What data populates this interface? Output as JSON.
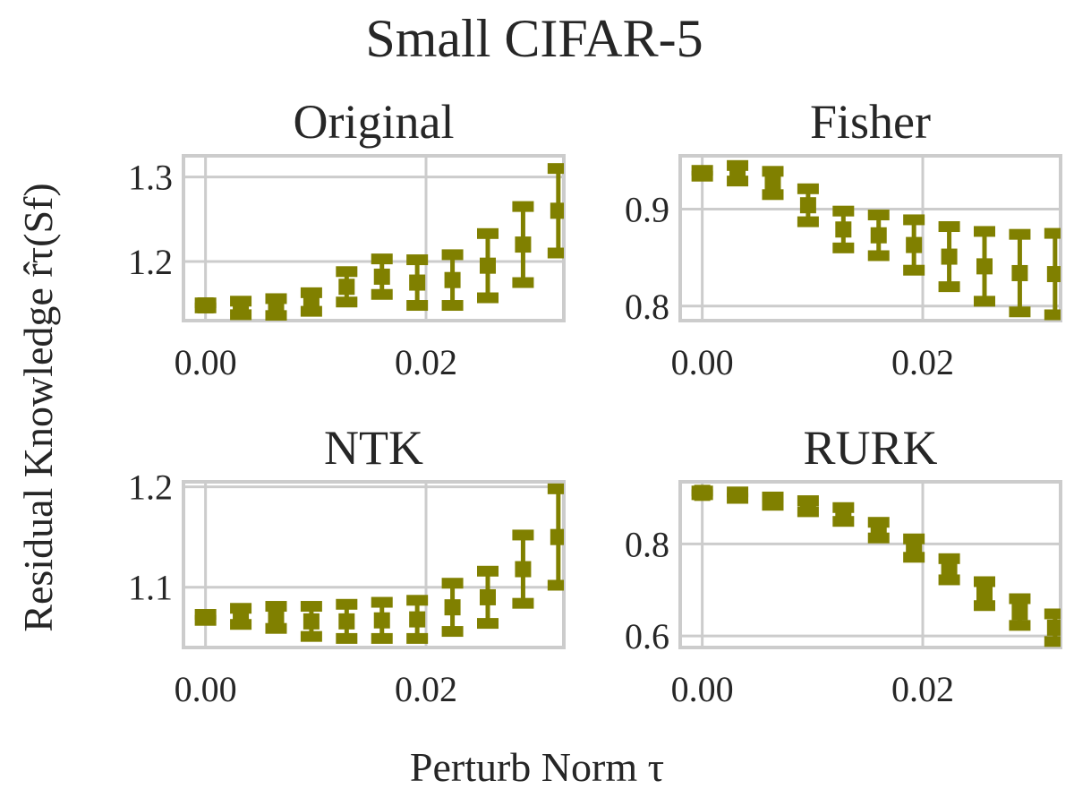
{
  "chart_data": {
    "type": "scatter",
    "title": "Small CIFAR-5",
    "xlabel": "Perturb Norm τ",
    "ylabel": "Residual Knowledge r̂τ(Sf)",
    "color": "#808000",
    "x": [
      0.0,
      0.0032,
      0.0064,
      0.0096,
      0.0128,
      0.016,
      0.0192,
      0.0224,
      0.0256,
      0.0288,
      0.032
    ],
    "panels": [
      {
        "title": "Original",
        "xlim": [
          -0.002,
          0.0325
        ],
        "ylim": [
          1.13,
          1.325
        ],
        "xticks": [
          {
            "v": 0.0,
            "label": "0.00"
          },
          {
            "v": 0.02,
            "label": "0.02"
          }
        ],
        "yticks": [
          {
            "v": 1.2,
            "label": "1.2"
          },
          {
            "v": 1.3,
            "label": "1.3"
          }
        ],
        "y": [
          1.148,
          1.145,
          1.146,
          1.152,
          1.17,
          1.182,
          1.175,
          1.178,
          1.195,
          1.22,
          1.26
        ],
        "err": [
          0.003,
          0.008,
          0.01,
          0.011,
          0.018,
          0.021,
          0.027,
          0.03,
          0.038,
          0.045,
          0.05
        ]
      },
      {
        "title": "Fisher",
        "xlim": [
          -0.002,
          0.0325
        ],
        "ylim": [
          0.785,
          0.955
        ],
        "xticks": [
          {
            "v": 0.0,
            "label": "0.00"
          },
          {
            "v": 0.02,
            "label": "0.02"
          }
        ],
        "yticks": [
          {
            "v": 0.8,
            "label": "0.8"
          },
          {
            "v": 0.9,
            "label": "0.9"
          }
        ],
        "y": [
          0.937,
          0.937,
          0.927,
          0.904,
          0.879,
          0.873,
          0.863,
          0.851,
          0.841,
          0.834,
          0.833
        ],
        "err": [
          0.003,
          0.008,
          0.012,
          0.017,
          0.019,
          0.021,
          0.026,
          0.031,
          0.036,
          0.04,
          0.042
        ]
      },
      {
        "title": "NTK",
        "xlim": [
          -0.002,
          0.0325
        ],
        "ylim": [
          1.04,
          1.205
        ],
        "xticks": [
          {
            "v": 0.0,
            "label": "0.00"
          },
          {
            "v": 0.02,
            "label": "0.02"
          }
        ],
        "yticks": [
          {
            "v": 1.1,
            "label": "1.1"
          },
          {
            "v": 1.2,
            "label": "1.2"
          }
        ],
        "y": [
          1.07,
          1.071,
          1.07,
          1.066,
          1.066,
          1.067,
          1.068,
          1.08,
          1.09,
          1.118,
          1.15
        ],
        "err": [
          0.003,
          0.008,
          0.011,
          0.015,
          0.017,
          0.018,
          0.019,
          0.024,
          0.026,
          0.034,
          0.048
        ]
      },
      {
        "title": "RURK",
        "xlim": [
          -0.002,
          0.0325
        ],
        "ylim": [
          0.575,
          0.935
        ],
        "xticks": [
          {
            "v": 0.0,
            "label": "0.00"
          },
          {
            "v": 0.02,
            "label": "0.02"
          }
        ],
        "yticks": [
          {
            "v": 0.6,
            "label": "0.6"
          },
          {
            "v": 0.8,
            "label": "0.8"
          }
        ],
        "y": [
          0.911,
          0.906,
          0.893,
          0.882,
          0.864,
          0.83,
          0.791,
          0.745,
          0.692,
          0.652,
          0.618
        ],
        "err": [
          0.004,
          0.007,
          0.009,
          0.012,
          0.015,
          0.017,
          0.02,
          0.023,
          0.026,
          0.029,
          0.03
        ]
      }
    ]
  }
}
